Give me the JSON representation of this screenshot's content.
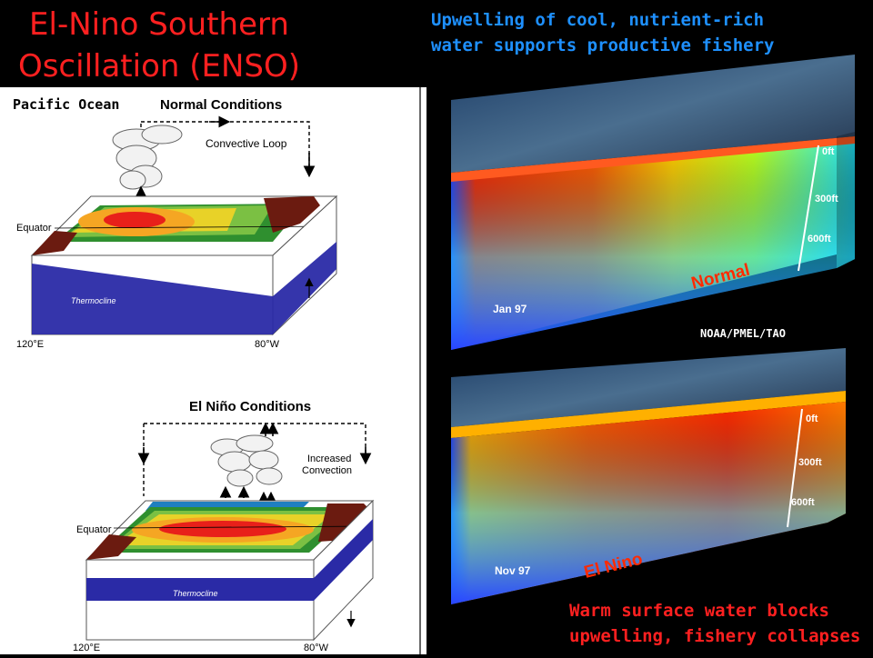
{
  "title": {
    "line1": "El-Nino Southern",
    "line2": "Oscillation (ENSO)"
  },
  "top_note": {
    "line1": "Upwelling of cool, nutrient-rich",
    "line2": "water supports productive fishery"
  },
  "bottom_note": {
    "line1": "Warm surface water blocks",
    "line2": "upwelling, fishery collapses"
  },
  "left_panel": {
    "label": "Pacific Ocean",
    "normal": {
      "heading": "Normal Conditions",
      "loop": "Convective Loop",
      "equator": "Equator",
      "thermocline": "Thermocline",
      "west": "120°E",
      "east": "80°W"
    },
    "elnino": {
      "heading": "El Niño Conditions",
      "convection1": "Increased",
      "convection2": "Convection",
      "equator": "Equator",
      "thermocline": "Thermocline",
      "west": "120°E",
      "east": "80°W"
    }
  },
  "right_panel": {
    "normal": {
      "state": "Normal",
      "date": "Jan 97",
      "depths": [
        "0ft",
        "300ft",
        "600ft"
      ]
    },
    "elnino": {
      "state": "El Nino",
      "date": "Nov 97",
      "depths": [
        "0ft",
        "300ft",
        "600ft"
      ]
    },
    "credit": "NOAA/PMEL/TAO"
  },
  "colors": {
    "title": "#ff2020",
    "top_note": "#1e90ff",
    "warm": "#ff2a00",
    "cool": "#2a46ff"
  }
}
